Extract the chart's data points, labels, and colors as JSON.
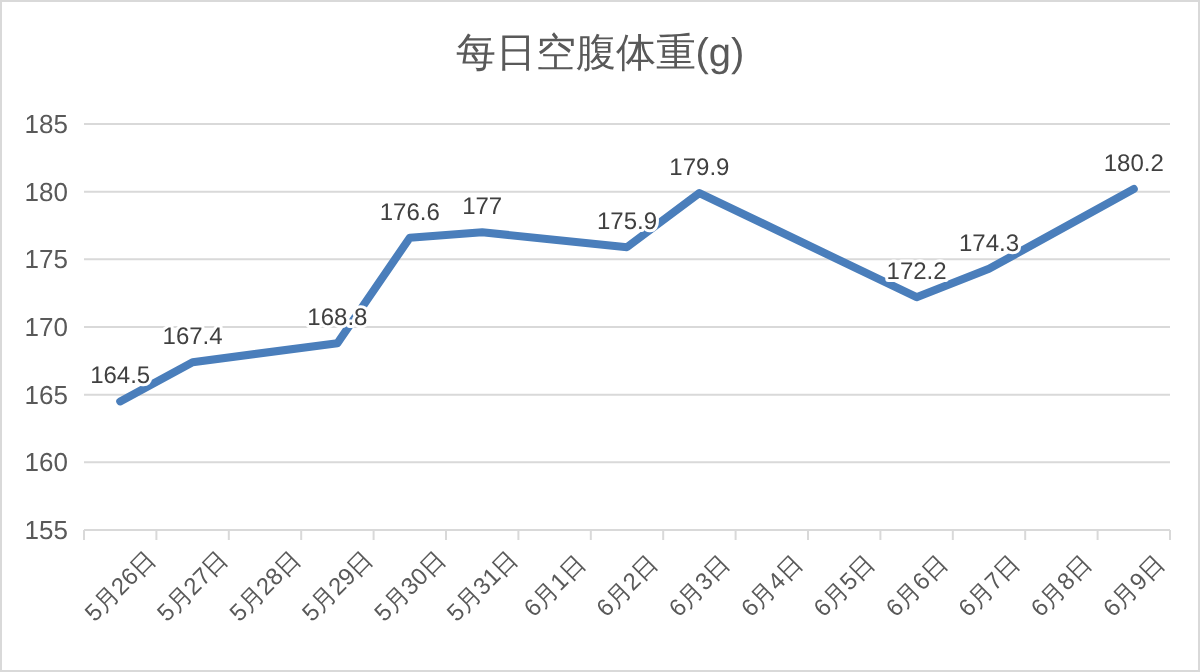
{
  "chart_data": {
    "type": "line",
    "title": "每日空腹体重(g)",
    "categories": [
      "5月26日",
      "5月27日",
      "5月28日",
      "5月29日",
      "5月30日",
      "5月31日",
      "6月1日",
      "6月2日",
      "6月3日",
      "6月4日",
      "6月5日",
      "6月6日",
      "6月7日",
      "6月8日",
      "6月9日"
    ],
    "values": [
      164.5,
      167.4,
      null,
      168.8,
      176.6,
      177,
      null,
      175.9,
      179.9,
      null,
      null,
      172.2,
      174.3,
      null,
      180.2
    ],
    "color": "#4a7ebb",
    "ylim": [
      155,
      185
    ],
    "yticks": [
      155,
      160,
      165,
      170,
      175,
      180,
      185
    ],
    "grid": "y",
    "data_labels": true
  }
}
